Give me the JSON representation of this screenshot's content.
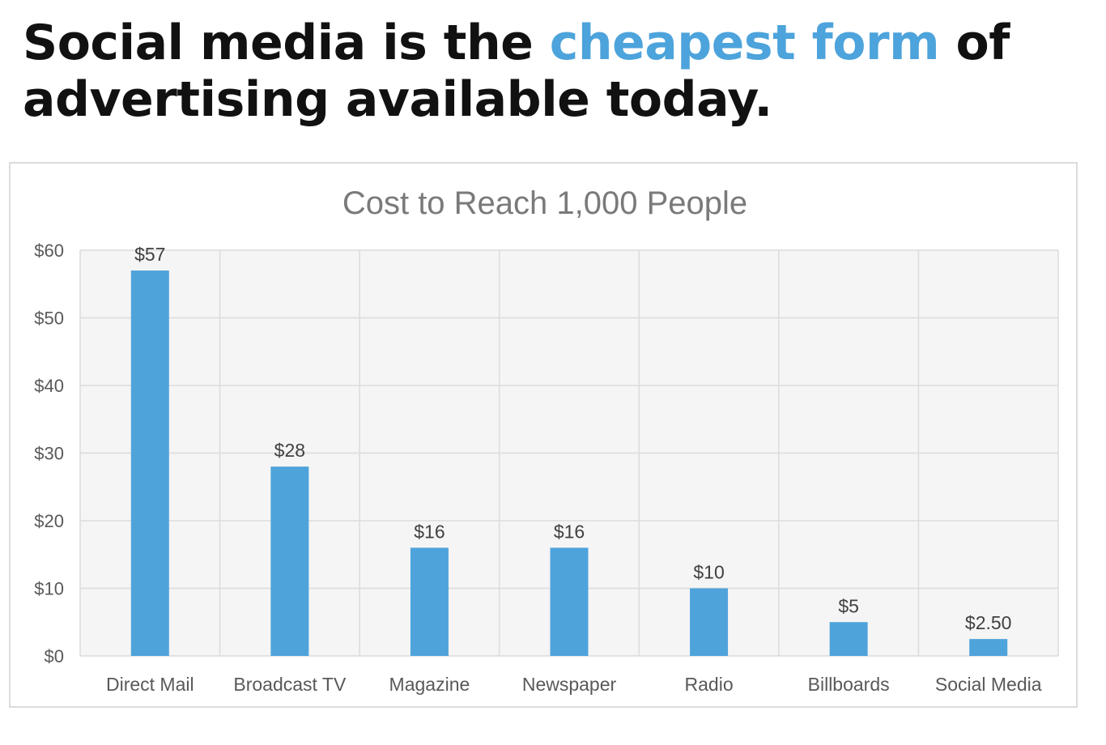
{
  "headline": {
    "part1": "Social media is the ",
    "accent": "cheapest form",
    "part2": " of advertising available today."
  },
  "colors": {
    "accent": "#4da3db",
    "bar": "#4fa3db",
    "plot_bg": "#f5f5f5",
    "grid": "#dcdcdc"
  },
  "chart_data": {
    "type": "bar",
    "title": "Cost to Reach 1,000 People",
    "xlabel": "",
    "ylabel": "",
    "categories": [
      "Direct Mail",
      "Broadcast TV",
      "Magazine",
      "Newspaper",
      "Radio",
      "Billboards",
      "Social Media"
    ],
    "values": [
      57,
      28,
      16,
      16,
      10,
      5,
      2.5
    ],
    "data_labels": [
      "$57",
      "$28",
      "$16",
      "$16",
      "$10",
      "$5",
      "$2.50"
    ],
    "ylim": [
      0,
      60
    ],
    "y_ticks": [
      0,
      10,
      20,
      30,
      40,
      50,
      60
    ],
    "y_tick_labels": [
      "$0",
      "$10",
      "$20",
      "$30",
      "$40",
      "$50",
      "$60"
    ],
    "grid": true,
    "legend": "none"
  }
}
